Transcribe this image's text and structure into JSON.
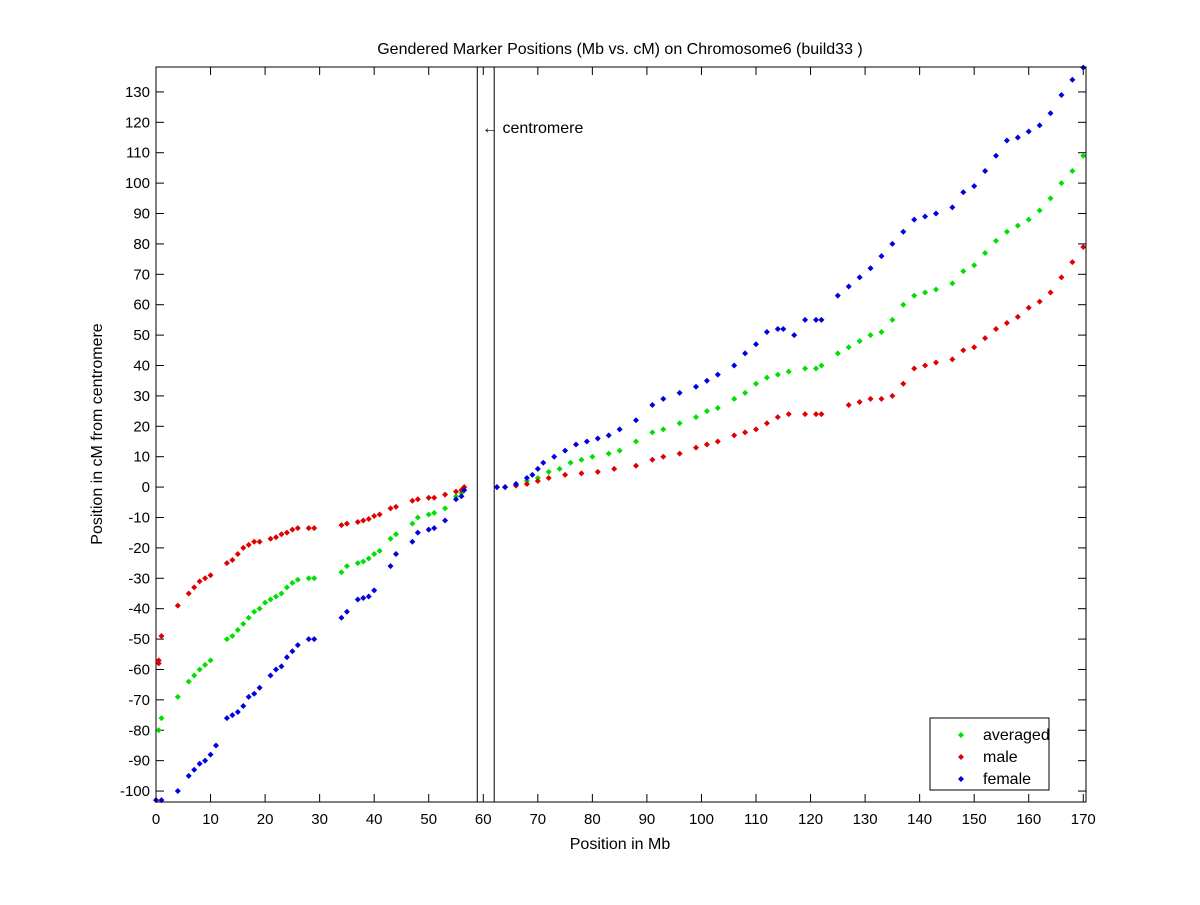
{
  "chart_data": {
    "type": "scatter",
    "title": "Gendered Marker Positions (Mb vs. cM) on Chromosome6 (build33 )",
    "xlabel": "Position in Mb",
    "ylabel": "Position in cM from centromere",
    "xlim": [
      0,
      170.5
    ],
    "ylim": [
      -103.6,
      138.2
    ],
    "xticks": [
      0,
      10,
      20,
      30,
      40,
      50,
      60,
      70,
      80,
      90,
      100,
      110,
      120,
      130,
      140,
      150,
      160,
      170
    ],
    "yticks": [
      -100,
      -90,
      -80,
      -70,
      -60,
      -50,
      -40,
      -30,
      -20,
      -10,
      0,
      10,
      20,
      30,
      40,
      50,
      60,
      70,
      80,
      90,
      100,
      110,
      120,
      130
    ],
    "grid": false,
    "legend_position": "bottom-right",
    "centromere": {
      "label": "← centromere",
      "start": 58.9,
      "end": 62.0
    },
    "series": [
      {
        "name": "averaged",
        "color": "#00e000",
        "points": [
          [
            0.5,
            -80
          ],
          [
            1,
            -76
          ],
          [
            4,
            -69
          ],
          [
            6,
            -64
          ],
          [
            7,
            -62
          ],
          [
            8,
            -60
          ],
          [
            9,
            -58.5
          ],
          [
            10,
            -57
          ],
          [
            13,
            -50
          ],
          [
            14,
            -49
          ],
          [
            15,
            -47
          ],
          [
            16,
            -45
          ],
          [
            17,
            -43
          ],
          [
            18,
            -41
          ],
          [
            19,
            -40
          ],
          [
            20,
            -38
          ],
          [
            21,
            -37
          ],
          [
            22,
            -36
          ],
          [
            23,
            -35
          ],
          [
            24,
            -33
          ],
          [
            25,
            -31.5
          ],
          [
            26,
            -30.5
          ],
          [
            28,
            -30
          ],
          [
            29,
            -30
          ],
          [
            34,
            -28
          ],
          [
            35,
            -26
          ],
          [
            37,
            -25
          ],
          [
            38,
            -24.5
          ],
          [
            39,
            -23.5
          ],
          [
            40,
            -22
          ],
          [
            41,
            -21
          ],
          [
            43,
            -17
          ],
          [
            44,
            -15.5
          ],
          [
            47,
            -12
          ],
          [
            48,
            -10
          ],
          [
            50,
            -9
          ],
          [
            51,
            -8.5
          ],
          [
            53,
            -7
          ],
          [
            55,
            -3
          ],
          [
            56,
            -2
          ],
          [
            56.5,
            0
          ],
          [
            62.5,
            0
          ],
          [
            64,
            0
          ],
          [
            66,
            0.5
          ],
          [
            68,
            2
          ],
          [
            70,
            3
          ],
          [
            72,
            5
          ],
          [
            74,
            6
          ],
          [
            76,
            8
          ],
          [
            78,
            9
          ],
          [
            80,
            10
          ],
          [
            83,
            11
          ],
          [
            85,
            12
          ],
          [
            88,
            15
          ],
          [
            91,
            18
          ],
          [
            93,
            19
          ],
          [
            96,
            21
          ],
          [
            99,
            23
          ],
          [
            101,
            25
          ],
          [
            103,
            26
          ],
          [
            106,
            29
          ],
          [
            108,
            31
          ],
          [
            110,
            34
          ],
          [
            112,
            36
          ],
          [
            114,
            37
          ],
          [
            116,
            38
          ],
          [
            119,
            39
          ],
          [
            121,
            39
          ],
          [
            122,
            40
          ],
          [
            125,
            44
          ],
          [
            127,
            46
          ],
          [
            129,
            48
          ],
          [
            131,
            50
          ],
          [
            133,
            51
          ],
          [
            135,
            55
          ],
          [
            137,
            60
          ],
          [
            139,
            63
          ],
          [
            141,
            64
          ],
          [
            143,
            65
          ],
          [
            146,
            67
          ],
          [
            148,
            71
          ],
          [
            150,
            73
          ],
          [
            152,
            77
          ],
          [
            154,
            81
          ],
          [
            156,
            84
          ],
          [
            158,
            86
          ],
          [
            160,
            88
          ],
          [
            162,
            91
          ],
          [
            164,
            95
          ],
          [
            166,
            100
          ],
          [
            168,
            104
          ],
          [
            170,
            109
          ]
        ]
      },
      {
        "name": "male",
        "color": "#e00000",
        "points": [
          [
            0.5,
            -57
          ],
          [
            0.5,
            -58
          ],
          [
            1,
            -49
          ],
          [
            4,
            -39
          ],
          [
            6,
            -35
          ],
          [
            7,
            -33
          ],
          [
            8,
            -31
          ],
          [
            9,
            -30
          ],
          [
            10,
            -29
          ],
          [
            13,
            -25
          ],
          [
            14,
            -24
          ],
          [
            15,
            -22
          ],
          [
            16,
            -20
          ],
          [
            17,
            -19
          ],
          [
            18,
            -18
          ],
          [
            19,
            -18
          ],
          [
            21,
            -17
          ],
          [
            22,
            -16.5
          ],
          [
            23,
            -15.5
          ],
          [
            24,
            -15
          ],
          [
            25,
            -14
          ],
          [
            26,
            -13.5
          ],
          [
            28,
            -13.5
          ],
          [
            29,
            -13.5
          ],
          [
            34,
            -12.5
          ],
          [
            35,
            -12
          ],
          [
            37,
            -11.5
          ],
          [
            38,
            -11
          ],
          [
            39,
            -10.5
          ],
          [
            40,
            -9.5
          ],
          [
            41,
            -9
          ],
          [
            43,
            -7
          ],
          [
            44,
            -6.5
          ],
          [
            47,
            -4.5
          ],
          [
            48,
            -4
          ],
          [
            50,
            -3.5
          ],
          [
            51,
            -3.5
          ],
          [
            53,
            -2.5
          ],
          [
            55,
            -1.5
          ],
          [
            56,
            -1
          ],
          [
            56.5,
            0
          ],
          [
            62.5,
            0
          ],
          [
            64,
            0
          ],
          [
            66,
            0.5
          ],
          [
            68,
            1
          ],
          [
            70,
            2
          ],
          [
            72,
            3
          ],
          [
            75,
            4
          ],
          [
            78,
            4.5
          ],
          [
            81,
            5
          ],
          [
            84,
            6
          ],
          [
            88,
            7
          ],
          [
            91,
            9
          ],
          [
            93,
            10
          ],
          [
            96,
            11
          ],
          [
            99,
            13
          ],
          [
            101,
            14
          ],
          [
            103,
            15
          ],
          [
            106,
            17
          ],
          [
            108,
            18
          ],
          [
            110,
            19
          ],
          [
            112,
            21
          ],
          [
            114,
            23
          ],
          [
            116,
            24
          ],
          [
            119,
            24
          ],
          [
            121,
            24
          ],
          [
            122,
            24
          ],
          [
            127,
            27
          ],
          [
            129,
            28
          ],
          [
            131,
            29
          ],
          [
            133,
            29
          ],
          [
            135,
            30
          ],
          [
            137,
            34
          ],
          [
            139,
            39
          ],
          [
            141,
            40
          ],
          [
            143,
            41
          ],
          [
            146,
            42
          ],
          [
            148,
            45
          ],
          [
            150,
            46
          ],
          [
            152,
            49
          ],
          [
            154,
            52
          ],
          [
            156,
            54
          ],
          [
            158,
            56
          ],
          [
            160,
            59
          ],
          [
            162,
            61
          ],
          [
            164,
            64
          ],
          [
            166,
            69
          ],
          [
            168,
            74
          ],
          [
            170,
            79
          ]
        ]
      },
      {
        "name": "female",
        "color": "#0000e0",
        "points": [
          [
            0,
            -103
          ],
          [
            1,
            -103
          ],
          [
            4,
            -100
          ],
          [
            6,
            -95
          ],
          [
            7,
            -93
          ],
          [
            8,
            -91
          ],
          [
            9,
            -90
          ],
          [
            10,
            -88
          ],
          [
            11,
            -85
          ],
          [
            13,
            -76
          ],
          [
            14,
            -75
          ],
          [
            15,
            -74
          ],
          [
            16,
            -72
          ],
          [
            17,
            -69
          ],
          [
            18,
            -68
          ],
          [
            19,
            -66
          ],
          [
            21,
            -62
          ],
          [
            22,
            -60
          ],
          [
            23,
            -59
          ],
          [
            24,
            -56
          ],
          [
            25,
            -54
          ],
          [
            26,
            -52
          ],
          [
            28,
            -50
          ],
          [
            29,
            -50
          ],
          [
            34,
            -43
          ],
          [
            35,
            -41
          ],
          [
            37,
            -37
          ],
          [
            38,
            -36.5
          ],
          [
            39,
            -36
          ],
          [
            40,
            -34
          ],
          [
            43,
            -26
          ],
          [
            44,
            -22
          ],
          [
            47,
            -18
          ],
          [
            48,
            -15
          ],
          [
            50,
            -14
          ],
          [
            51,
            -13.5
          ],
          [
            53,
            -11
          ],
          [
            55,
            -4
          ],
          [
            56,
            -3
          ],
          [
            56.5,
            -1
          ],
          [
            62.5,
            0
          ],
          [
            64,
            0
          ],
          [
            66,
            1
          ],
          [
            68,
            3
          ],
          [
            69,
            4
          ],
          [
            70,
            6
          ],
          [
            71,
            8
          ],
          [
            73,
            10
          ],
          [
            75,
            12
          ],
          [
            77,
            14
          ],
          [
            79,
            15
          ],
          [
            81,
            16
          ],
          [
            83,
            17
          ],
          [
            85,
            19
          ],
          [
            88,
            22
          ],
          [
            91,
            27
          ],
          [
            93,
            29
          ],
          [
            96,
            31
          ],
          [
            99,
            33
          ],
          [
            101,
            35
          ],
          [
            103,
            37
          ],
          [
            106,
            40
          ],
          [
            108,
            44
          ],
          [
            110,
            47
          ],
          [
            112,
            51
          ],
          [
            114,
            52
          ],
          [
            115,
            52
          ],
          [
            117,
            50
          ],
          [
            119,
            55
          ],
          [
            121,
            55
          ],
          [
            122,
            55
          ],
          [
            125,
            63
          ],
          [
            127,
            66
          ],
          [
            129,
            69
          ],
          [
            131,
            72
          ],
          [
            133,
            76
          ],
          [
            135,
            80
          ],
          [
            137,
            84
          ],
          [
            139,
            88
          ],
          [
            141,
            89
          ],
          [
            143,
            90
          ],
          [
            146,
            92
          ],
          [
            148,
            97
          ],
          [
            150,
            99
          ],
          [
            152,
            104
          ],
          [
            154,
            109
          ],
          [
            156,
            114
          ],
          [
            158,
            115
          ],
          [
            160,
            117
          ],
          [
            162,
            119
          ],
          [
            164,
            123
          ],
          [
            166,
            129
          ],
          [
            168,
            134
          ],
          [
            170,
            138
          ]
        ]
      }
    ]
  }
}
